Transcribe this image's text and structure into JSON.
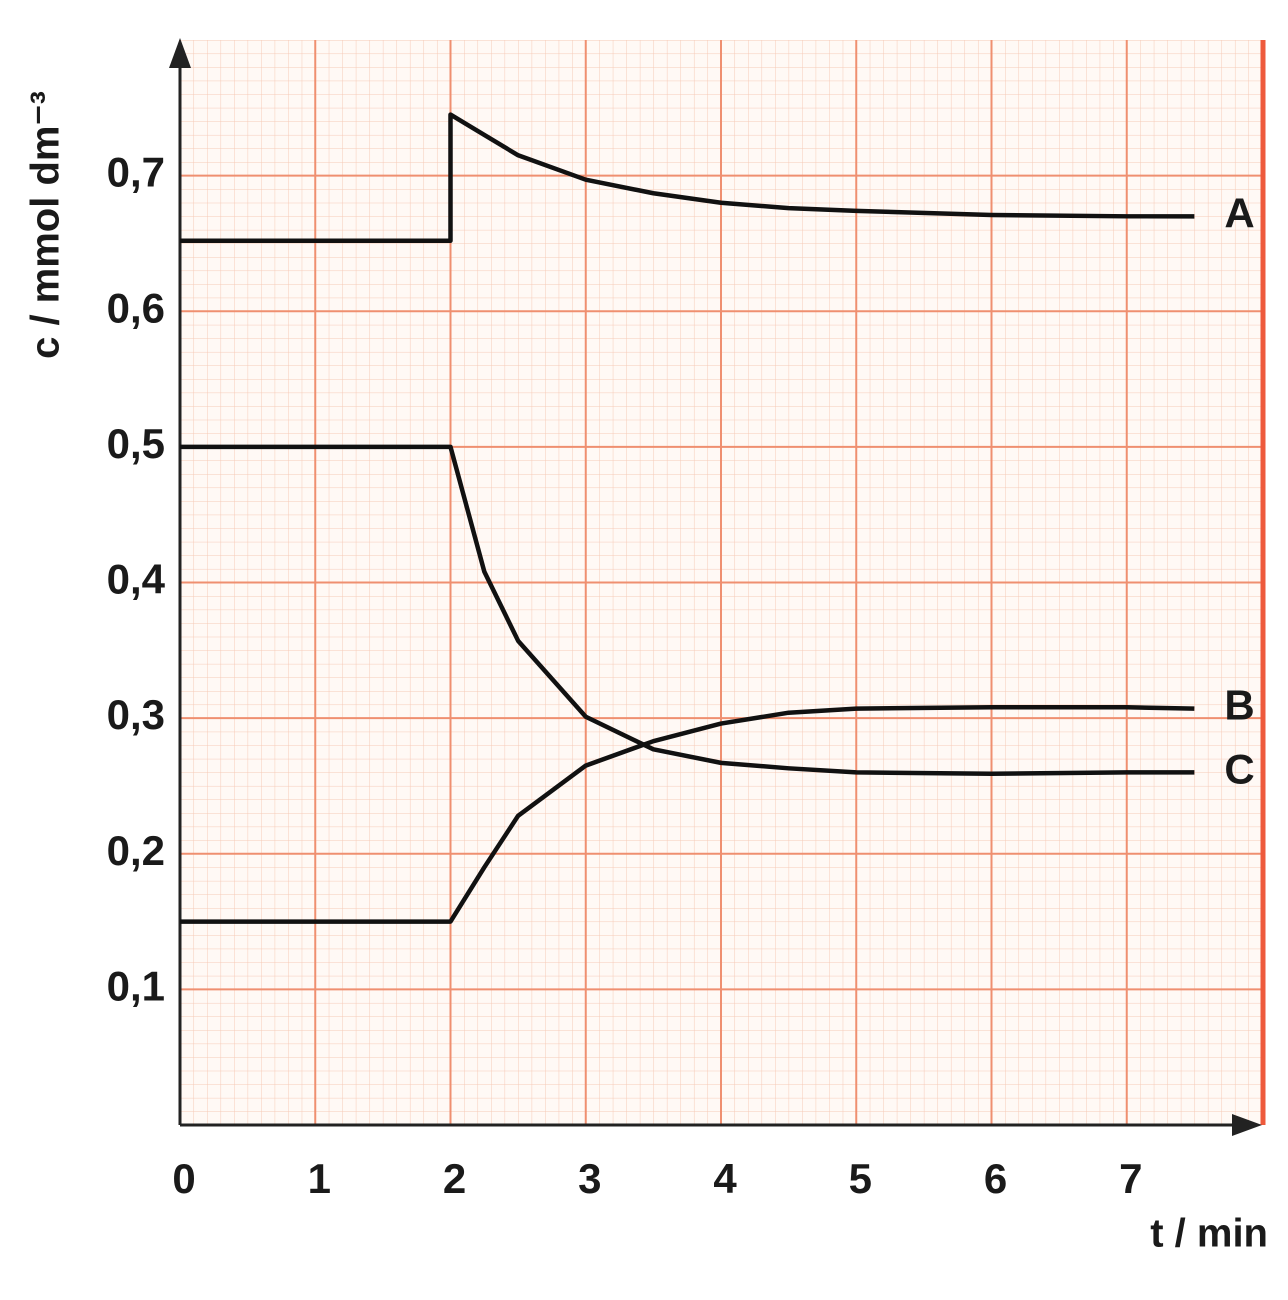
{
  "chart_data": {
    "type": "line",
    "x_label": "t / min",
    "y_label": "c / mmol dm⁻³",
    "x": [
      0,
      2,
      2,
      2.25,
      2.5,
      3,
      3.5,
      4,
      4.5,
      5,
      6,
      7,
      7.5
    ],
    "series": [
      {
        "name": "A",
        "color": "#111111",
        "values": [
          0.652,
          0.652,
          0.745,
          0.73,
          0.715,
          0.697,
          0.687,
          0.68,
          0.676,
          0.674,
          0.671,
          0.67,
          0.67
        ]
      },
      {
        "name": "B",
        "color": "#111111",
        "values": [
          0.15,
          0.15,
          0.15,
          0.19,
          0.228,
          0.265,
          0.283,
          0.296,
          0.304,
          0.307,
          0.308,
          0.308,
          0.307
        ]
      },
      {
        "name": "C",
        "color": "#111111",
        "values": [
          0.5,
          0.5,
          0.5,
          0.408,
          0.357,
          0.301,
          0.277,
          0.267,
          0.263,
          0.26,
          0.259,
          0.26,
          0.26
        ]
      }
    ],
    "xlim": [
      0,
      8
    ],
    "ylim": [
      0,
      0.8
    ],
    "xticks": [
      0,
      1,
      2,
      3,
      4,
      5,
      6,
      7
    ],
    "yticks": [
      {
        "value": 0.1,
        "label": "0,1"
      },
      {
        "value": 0.2,
        "label": "0,2"
      },
      {
        "value": 0.3,
        "label": "0,3"
      },
      {
        "value": 0.4,
        "label": "0,4"
      },
      {
        "value": 0.5,
        "label": "0,5"
      },
      {
        "value": 0.6,
        "label": "0,6"
      },
      {
        "value": 0.7,
        "label": "0,7"
      }
    ],
    "grid": true
  }
}
